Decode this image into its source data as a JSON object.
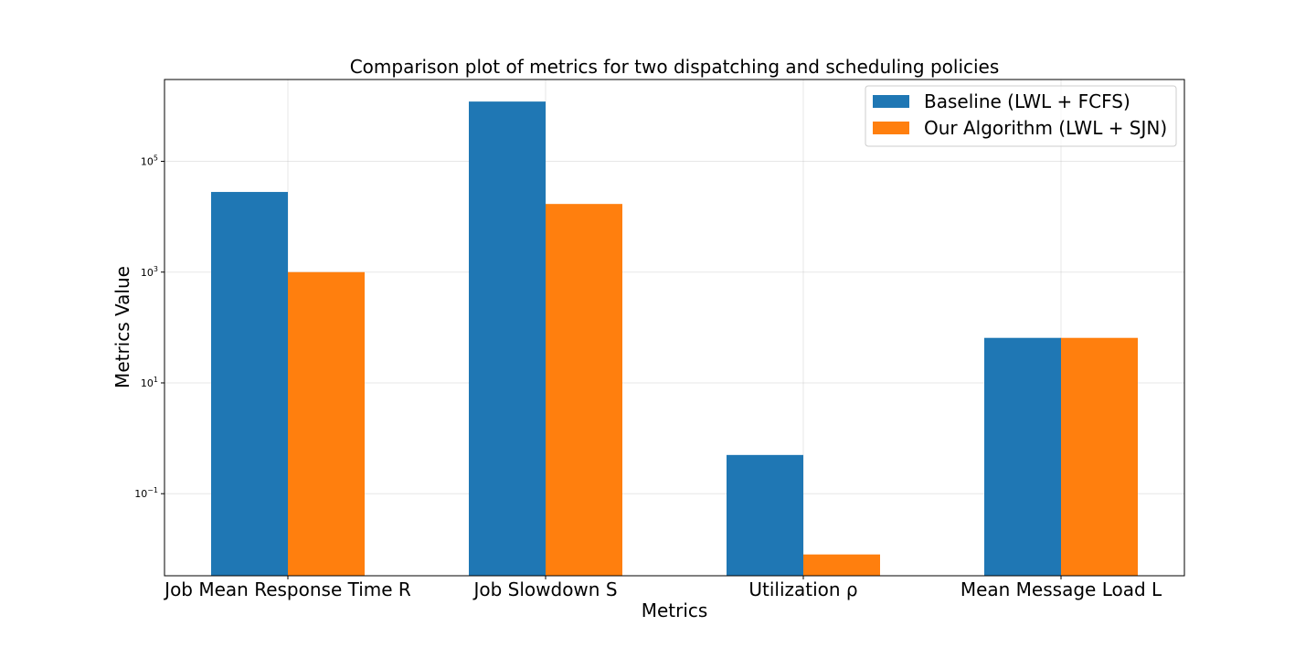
{
  "chart_data": {
    "type": "bar",
    "title": "Comparison plot of metrics for two dispatching and scheduling policies",
    "xlabel": "Metrics",
    "ylabel": "Metrics Value",
    "yscale": "log",
    "ylim": [
      0.0033,
      3000000
    ],
    "yticks": [
      {
        "value": 0.1,
        "base": "10",
        "exp": "−1"
      },
      {
        "value": 10,
        "base": "10",
        "exp": "1"
      },
      {
        "value": 1000,
        "base": "10",
        "exp": "3"
      },
      {
        "value": 100000,
        "base": "10",
        "exp": "5"
      }
    ],
    "grid": true,
    "legend_position": "top-right",
    "categories": [
      "Job Mean Response Time R",
      "Job Slowdown S",
      "Utilization ρ",
      "Mean Message Load L"
    ],
    "series": [
      {
        "name": "Baseline (LWL + FCFS)",
        "color": "#1f77b4",
        "values": [
          28000,
          1200000,
          0.5,
          65
        ]
      },
      {
        "name": "Our Algorithm (LWL + SJN)",
        "color": "#ff7f0e",
        "values": [
          1000,
          17000,
          0.008,
          65
        ]
      }
    ]
  }
}
